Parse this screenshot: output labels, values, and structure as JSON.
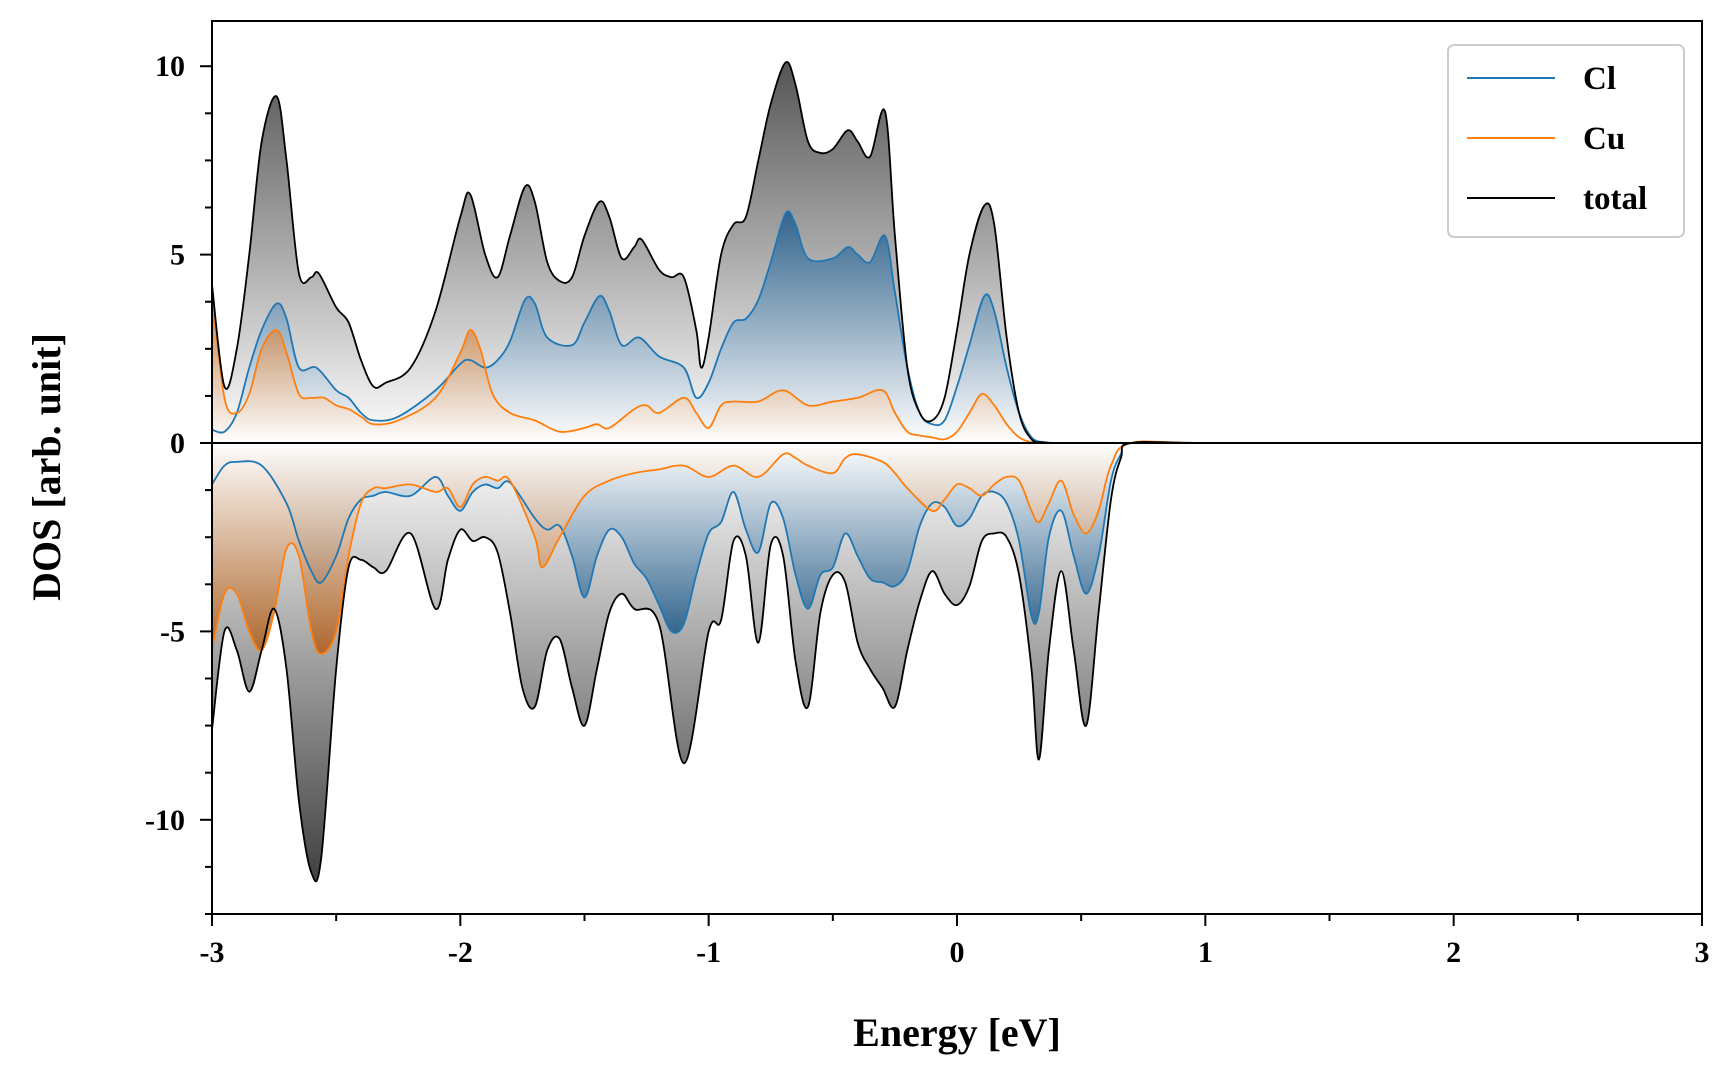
{
  "chart_data": {
    "type": "area",
    "xlabel": "Energy [eV]",
    "ylabel": "DOS [arb. unit]",
    "xlim": [
      -3,
      3
    ],
    "ylim": [
      -12.5,
      11.2
    ],
    "xticks": [
      -3,
      -2,
      -1,
      0,
      1,
      2,
      3
    ],
    "xtick_labels": [
      "-3",
      "-2",
      "-1",
      "0",
      "1",
      "2",
      "3"
    ],
    "yticks": [
      -10,
      -5,
      0,
      5,
      10
    ],
    "ytick_labels": [
      "-10",
      "-5",
      "0",
      "5",
      "10"
    ],
    "legend_position": "top-right",
    "grid": false,
    "colors": {
      "Cl": "#1f77b4",
      "Cu": "#ff7f0e",
      "total": "#000000"
    },
    "series": [
      {
        "name": "Cl",
        "spin_up": {
          "x": [
            -3.0,
            -2.95,
            -2.9,
            -2.85,
            -2.8,
            -2.74,
            -2.7,
            -2.65,
            -2.58,
            -2.5,
            -2.45,
            -2.4,
            -2.35,
            -2.25,
            -2.1,
            -2.0,
            -1.96,
            -1.9,
            -1.85,
            -1.8,
            -1.74,
            -1.7,
            -1.65,
            -1.55,
            -1.5,
            -1.44,
            -1.4,
            -1.35,
            -1.28,
            -1.2,
            -1.1,
            -1.05,
            -1.0,
            -0.95,
            -0.9,
            -0.85,
            -0.8,
            -0.75,
            -0.69,
            -0.65,
            -0.6,
            -0.5,
            -0.44,
            -0.4,
            -0.35,
            -0.29,
            -0.25,
            -0.2,
            -0.15,
            -0.1,
            -0.05,
            0.0,
            0.05,
            0.11,
            0.15,
            0.2,
            0.25,
            0.3,
            0.35,
            0.4,
            0.5,
            0.7,
            1.0,
            2.0,
            3.0
          ],
          "y": [
            0.35,
            0.3,
            0.8,
            2.0,
            3.0,
            3.7,
            3.3,
            2.0,
            2.0,
            1.4,
            1.2,
            0.8,
            0.6,
            0.7,
            1.4,
            2.1,
            2.2,
            2.0,
            2.2,
            2.7,
            3.8,
            3.7,
            2.8,
            2.6,
            3.2,
            3.9,
            3.5,
            2.6,
            2.8,
            2.3,
            2.0,
            1.2,
            1.6,
            2.5,
            3.2,
            3.3,
            3.8,
            4.8,
            6.1,
            5.8,
            4.9,
            4.9,
            5.2,
            5.0,
            4.8,
            5.5,
            4.0,
            2.0,
            0.8,
            0.5,
            0.6,
            1.5,
            2.6,
            3.9,
            3.5,
            2.0,
            0.8,
            0.15,
            0.02,
            0.0,
            0.0,
            0.0,
            0.0,
            0.0,
            0.0
          ]
        },
        "spin_down": {
          "x": [
            -3.0,
            -2.95,
            -2.9,
            -2.8,
            -2.7,
            -2.65,
            -2.6,
            -2.56,
            -2.5,
            -2.45,
            -2.4,
            -2.35,
            -2.3,
            -2.2,
            -2.1,
            -2.05,
            -2.0,
            -1.95,
            -1.9,
            -1.85,
            -1.8,
            -1.7,
            -1.65,
            -1.6,
            -1.55,
            -1.5,
            -1.45,
            -1.4,
            -1.35,
            -1.3,
            -1.25,
            -1.2,
            -1.15,
            -1.1,
            -1.05,
            -1.0,
            -0.95,
            -0.9,
            -0.85,
            -0.8,
            -0.75,
            -0.7,
            -0.65,
            -0.6,
            -0.55,
            -0.5,
            -0.45,
            -0.4,
            -0.35,
            -0.3,
            -0.25,
            -0.2,
            -0.15,
            -0.1,
            -0.05,
            0.0,
            0.05,
            0.1,
            0.15,
            0.2,
            0.25,
            0.3,
            0.33,
            0.37,
            0.42,
            0.47,
            0.52,
            0.57,
            0.62,
            0.66,
            0.7,
            1.0,
            2.0,
            3.0
          ],
          "y": [
            -1.1,
            -0.6,
            -0.5,
            -0.6,
            -1.6,
            -2.6,
            -3.4,
            -3.7,
            -3.0,
            -2.0,
            -1.5,
            -1.4,
            -1.3,
            -1.4,
            -0.9,
            -1.4,
            -1.8,
            -1.3,
            -1.1,
            -1.2,
            -1.05,
            -2.0,
            -2.3,
            -2.2,
            -3.0,
            -4.1,
            -3.0,
            -2.3,
            -2.5,
            -3.2,
            -3.6,
            -4.3,
            -5.0,
            -4.8,
            -3.5,
            -2.4,
            -2.1,
            -1.3,
            -2.3,
            -2.9,
            -1.6,
            -2.0,
            -3.5,
            -4.4,
            -3.5,
            -3.3,
            -2.4,
            -3.0,
            -3.6,
            -3.7,
            -3.8,
            -3.4,
            -2.2,
            -1.6,
            -1.7,
            -2.2,
            -2.0,
            -1.4,
            -1.3,
            -1.6,
            -2.6,
            -4.6,
            -4.5,
            -2.5,
            -1.8,
            -3.0,
            -4.0,
            -3.0,
            -1.0,
            -0.3,
            0.0,
            0.0,
            0.0,
            0.0
          ]
        }
      },
      {
        "name": "Cu",
        "spin_up": {
          "x": [
            -3.0,
            -2.95,
            -2.9,
            -2.85,
            -2.8,
            -2.74,
            -2.7,
            -2.65,
            -2.6,
            -2.55,
            -2.5,
            -2.45,
            -2.4,
            -2.35,
            -2.25,
            -2.1,
            -2.0,
            -1.96,
            -1.92,
            -1.87,
            -1.8,
            -1.7,
            -1.6,
            -1.5,
            -1.45,
            -1.4,
            -1.3,
            -1.25,
            -1.2,
            -1.1,
            -1.05,
            -1.0,
            -0.95,
            -0.9,
            -0.8,
            -0.7,
            -0.6,
            -0.5,
            -0.4,
            -0.3,
            -0.25,
            -0.2,
            -0.15,
            -0.1,
            -0.05,
            0.0,
            0.05,
            0.1,
            0.15,
            0.2,
            0.25,
            0.3,
            0.35,
            0.4,
            0.5,
            1.0,
            2.0,
            3.0
          ],
          "y": [
            4.0,
            1.2,
            0.8,
            1.3,
            2.5,
            3.0,
            2.4,
            1.3,
            1.2,
            1.2,
            1.0,
            0.9,
            0.7,
            0.5,
            0.6,
            1.2,
            2.4,
            3.0,
            2.5,
            1.3,
            0.8,
            0.6,
            0.3,
            0.4,
            0.5,
            0.4,
            0.9,
            1.0,
            0.8,
            1.2,
            0.8,
            0.4,
            1.0,
            1.1,
            1.1,
            1.4,
            1.0,
            1.1,
            1.2,
            1.4,
            0.8,
            0.3,
            0.2,
            0.15,
            0.1,
            0.3,
            0.8,
            1.3,
            1.0,
            0.5,
            0.15,
            0.02,
            0.0,
            0.0,
            0.0,
            0.0,
            0.0,
            0.0
          ]
        },
        "spin_down": {
          "x": [
            -3.0,
            -2.95,
            -2.9,
            -2.85,
            -2.8,
            -2.75,
            -2.7,
            -2.65,
            -2.6,
            -2.56,
            -2.5,
            -2.45,
            -2.4,
            -2.35,
            -2.3,
            -2.2,
            -2.1,
            -2.05,
            -2.0,
            -1.95,
            -1.9,
            -1.85,
            -1.8,
            -1.7,
            -1.67,
            -1.6,
            -1.5,
            -1.4,
            -1.3,
            -1.2,
            -1.1,
            -1.0,
            -0.9,
            -0.8,
            -0.7,
            -0.65,
            -0.6,
            -0.5,
            -0.45,
            -0.4,
            -0.3,
            -0.25,
            -0.2,
            -0.1,
            -0.05,
            0.0,
            0.05,
            0.1,
            0.15,
            0.2,
            0.25,
            0.3,
            0.33,
            0.37,
            0.42,
            0.47,
            0.52,
            0.57,
            0.62,
            0.7,
            1.0,
            2.0,
            3.0
          ],
          "y": [
            -5.5,
            -4.0,
            -4.0,
            -5.0,
            -5.5,
            -4.5,
            -2.8,
            -3.0,
            -5.0,
            -5.6,
            -5.0,
            -3.0,
            -1.6,
            -1.2,
            -1.2,
            -1.1,
            -1.3,
            -1.2,
            -1.7,
            -1.1,
            -0.9,
            -1.0,
            -1.0,
            -2.5,
            -3.3,
            -2.5,
            -1.4,
            -1.0,
            -0.8,
            -0.7,
            -0.6,
            -0.9,
            -0.6,
            -0.9,
            -0.3,
            -0.4,
            -0.6,
            -0.8,
            -0.4,
            -0.3,
            -0.5,
            -0.8,
            -1.2,
            -1.8,
            -1.5,
            -1.1,
            -1.2,
            -1.4,
            -1.1,
            -0.9,
            -1.0,
            -1.8,
            -2.1,
            -1.6,
            -1.0,
            -1.9,
            -2.4,
            -1.8,
            -0.6,
            0.0,
            0.0,
            0.0,
            0.0
          ]
        }
      },
      {
        "name": "total",
        "spin_up": {
          "x": [
            -3.0,
            -2.95,
            -2.9,
            -2.85,
            -2.8,
            -2.74,
            -2.7,
            -2.65,
            -2.6,
            -2.57,
            -2.5,
            -2.45,
            -2.4,
            -2.35,
            -2.3,
            -2.2,
            -2.1,
            -2.0,
            -1.96,
            -1.9,
            -1.85,
            -1.8,
            -1.74,
            -1.7,
            -1.65,
            -1.6,
            -1.55,
            -1.5,
            -1.44,
            -1.4,
            -1.35,
            -1.3,
            -1.27,
            -1.2,
            -1.15,
            -1.1,
            -1.05,
            -1.03,
            -1.0,
            -0.95,
            -0.9,
            -0.85,
            -0.8,
            -0.75,
            -0.69,
            -0.65,
            -0.6,
            -0.55,
            -0.5,
            -0.44,
            -0.4,
            -0.35,
            -0.29,
            -0.25,
            -0.2,
            -0.15,
            -0.1,
            -0.05,
            0.0,
            0.05,
            0.11,
            0.15,
            0.2,
            0.25,
            0.3,
            0.35,
            0.4,
            0.5,
            1.0,
            2.0,
            3.0
          ],
          "y": [
            4.2,
            1.5,
            2.5,
            5.0,
            8.0,
            9.2,
            7.5,
            4.5,
            4.4,
            4.5,
            3.6,
            3.2,
            2.2,
            1.5,
            1.6,
            2.0,
            3.5,
            6.0,
            6.6,
            5.0,
            4.4,
            5.5,
            6.8,
            6.4,
            4.8,
            4.3,
            4.4,
            5.5,
            6.4,
            6.0,
            4.9,
            5.2,
            5.4,
            4.6,
            4.4,
            4.4,
            3.0,
            2.0,
            2.8,
            5.0,
            5.8,
            6.0,
            7.5,
            9.0,
            10.1,
            9.5,
            8.0,
            7.7,
            7.8,
            8.3,
            8.0,
            7.6,
            8.8,
            5.5,
            2.0,
            0.8,
            0.6,
            1.2,
            3.0,
            5.0,
            6.3,
            5.8,
            2.8,
            0.8,
            0.1,
            0.02,
            0.0,
            0.0,
            0.0,
            0.0,
            0.0
          ]
        },
        "spin_down": {
          "x": [
            -3.0,
            -2.95,
            -2.9,
            -2.85,
            -2.8,
            -2.75,
            -2.7,
            -2.65,
            -2.6,
            -2.56,
            -2.5,
            -2.45,
            -2.4,
            -2.35,
            -2.3,
            -2.2,
            -2.1,
            -2.05,
            -2.0,
            -1.95,
            -1.9,
            -1.85,
            -1.8,
            -1.75,
            -1.7,
            -1.65,
            -1.6,
            -1.55,
            -1.5,
            -1.45,
            -1.4,
            -1.35,
            -1.3,
            -1.2,
            -1.1,
            -1.0,
            -0.95,
            -0.9,
            -0.85,
            -0.8,
            -0.75,
            -0.7,
            -0.65,
            -0.6,
            -0.55,
            -0.5,
            -0.45,
            -0.4,
            -0.35,
            -0.3,
            -0.25,
            -0.2,
            -0.15,
            -0.1,
            -0.05,
            0.0,
            0.05,
            0.1,
            0.15,
            0.2,
            0.25,
            0.3,
            0.33,
            0.37,
            0.42,
            0.47,
            0.52,
            0.57,
            0.62,
            0.66,
            0.7,
            1.0,
            2.0,
            3.0
          ],
          "y": [
            -7.6,
            -5.0,
            -5.5,
            -6.6,
            -5.5,
            -4.4,
            -6.0,
            -9.5,
            -11.4,
            -11.0,
            -6.0,
            -3.3,
            -3.1,
            -3.3,
            -3.4,
            -2.4,
            -4.4,
            -3.1,
            -2.3,
            -2.6,
            -2.5,
            -2.9,
            -4.5,
            -6.5,
            -7.0,
            -5.5,
            -5.2,
            -6.5,
            -7.5,
            -6.0,
            -4.5,
            -4.0,
            -4.4,
            -4.8,
            -8.5,
            -5.0,
            -4.7,
            -2.6,
            -3.0,
            -5.3,
            -2.7,
            -3.0,
            -5.8,
            -7.0,
            -4.5,
            -3.5,
            -3.7,
            -5.3,
            -6.0,
            -6.5,
            -7.0,
            -5.5,
            -4.2,
            -3.4,
            -4.0,
            -4.3,
            -3.8,
            -2.6,
            -2.4,
            -2.5,
            -3.5,
            -6.0,
            -8.4,
            -5.5,
            -3.4,
            -5.5,
            -7.5,
            -4.5,
            -1.5,
            -0.4,
            0.0,
            0.0,
            0.0,
            0.0
          ]
        }
      }
    ]
  }
}
